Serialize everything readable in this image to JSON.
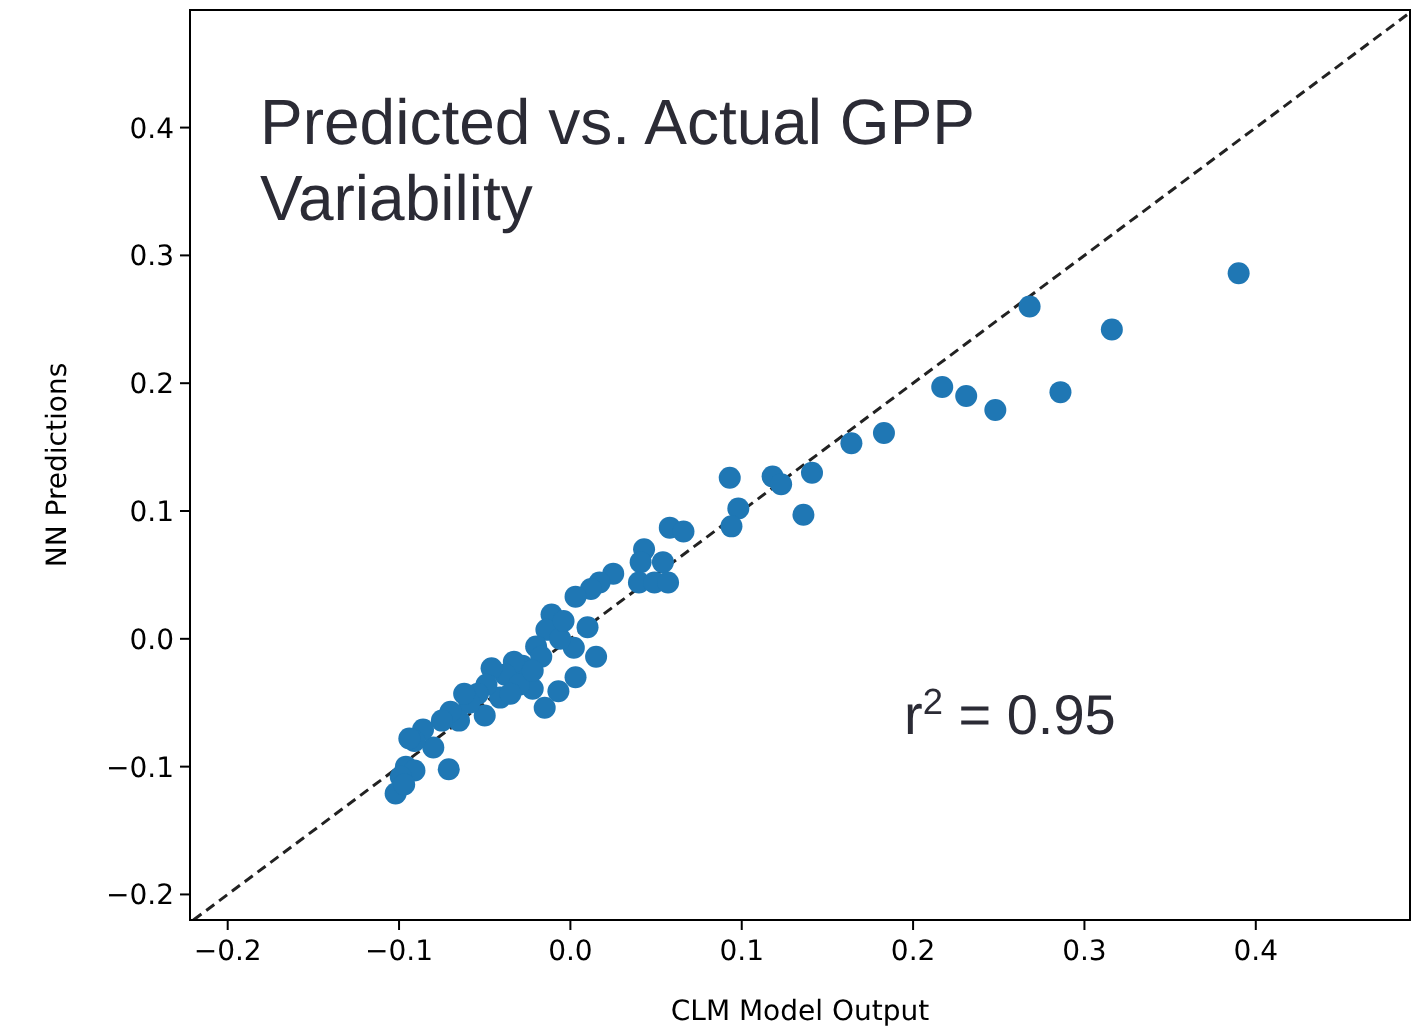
{
  "chart_data": {
    "type": "scatter",
    "title": "Predicted vs. Actual GPP Variability",
    "xlabel": "CLM Model Output",
    "ylabel": "NN Predictions",
    "annotations": [
      "r$^{2}$ = 0.95"
    ],
    "xlim": [
      -0.222,
      0.49
    ],
    "ylim": [
      -0.22,
      0.492
    ],
    "xticks": [
      {
        "value": -0.2,
        "label": "−0.2"
      },
      {
        "value": -0.1,
        "label": "−0.1"
      },
      {
        "value": 0,
        "label": "0.0"
      },
      0.1,
      0.2,
      0.3,
      0.4
    ],
    "yticks": [
      {
        "value": -0.2,
        "label": "−0.2"
      },
      {
        "value": -0.1,
        "label": "−0.1"
      },
      {
        "value": 0,
        "label": "0.0"
      },
      0.1,
      0.2,
      0.3,
      0.4
    ],
    "grid": false,
    "marker": "circle",
    "series": [
      {
        "type": "line",
        "color": "#222222",
        "line_style": "dashed",
        "marker": "none",
        "x": [
          -0.22,
          0.49
        ],
        "values": [
          -0.22,
          0.49
        ]
      },
      {
        "color": "#1f77b4",
        "x": [
          0.39,
          0.268,
          0.316,
          0.217,
          0.231,
          0.248,
          0.286,
          0.164,
          0.183,
          0.093,
          0.118,
          0.123,
          0.141,
          0.136,
          0.098,
          0.094,
          0.058,
          0.066,
          0.043,
          0.041,
          0.054,
          0.04,
          0.049,
          0.057,
          0.025,
          0.017,
          0.012,
          0.003,
          0.01,
          0.015,
          0.003,
          -0.011,
          -0.014,
          -0.007,
          -0.015,
          -0.022,
          -0.02,
          0.002,
          -0.028,
          -0.033,
          -0.038,
          -0.041,
          -0.046,
          -0.049,
          -0.054,
          -0.05,
          -0.059,
          -0.065,
          -0.062,
          -0.07,
          -0.075,
          -0.08,
          -0.086,
          -0.091,
          -0.094,
          -0.071,
          -0.096,
          -0.091,
          -0.099,
          -0.102,
          -0.097,
          -0.03,
          -0.035,
          -0.017,
          -0.006,
          -0.004,
          -0.022
        ],
        "values": [
          0.286,
          0.26,
          0.242,
          0.197,
          0.19,
          0.179,
          0.193,
          0.153,
          0.161,
          0.126,
          0.127,
          0.121,
          0.13,
          0.097,
          0.102,
          0.088,
          0.087,
          0.084,
          0.07,
          0.06,
          0.06,
          0.044,
          0.044,
          0.044,
          0.051,
          0.044,
          0.039,
          0.033,
          0.009,
          -0.014,
          -0.03,
          0.019,
          0.007,
          -0.041,
          -0.054,
          -0.039,
          -0.006,
          -0.007,
          -0.021,
          -0.018,
          -0.028,
          -0.046,
          -0.023,
          -0.036,
          -0.043,
          -0.06,
          -0.05,
          -0.064,
          -0.043,
          -0.057,
          -0.064,
          -0.085,
          -0.071,
          -0.08,
          -0.078,
          -0.102,
          -0.1,
          -0.103,
          -0.108,
          -0.121,
          -0.114,
          -0.036,
          -0.043,
          -0.014,
          0.0,
          0.014,
          -0.025
        ]
      }
    ]
  }
}
